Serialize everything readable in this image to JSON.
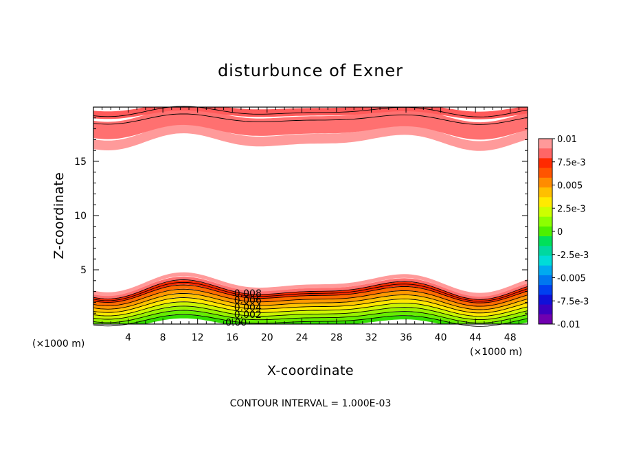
{
  "chart_data": {
    "type": "contour",
    "title": "disturbunce of Exner",
    "xlabel": "X-coordinate",
    "ylabel": "Z-coordinate",
    "x_unit": "(×1000 m)",
    "y_unit": "(×1000 m)",
    "xlim": [
      0,
      50
    ],
    "ylim": [
      0,
      20
    ],
    "x_ticks": [
      4,
      8,
      12,
      16,
      20,
      24,
      28,
      32,
      36,
      40,
      44,
      48
    ],
    "y_ticks": [
      5,
      10,
      15
    ],
    "x_tick_labels": [
      "4",
      "8",
      "12",
      "16",
      "20",
      "24",
      "28",
      "32",
      "36",
      "40",
      "44",
      "48"
    ],
    "y_tick_labels": [
      "5",
      "10",
      "15"
    ],
    "contour_levels": [
      -0.01,
      -0.0075,
      -0.005,
      -0.0025,
      0,
      0.0025,
      0.005,
      0.0075,
      0.01
    ],
    "colorbar_labels": [
      "0.01",
      "7.5e-3",
      "0.005",
      "2.5e-3",
      "0",
      "-2.5e-3",
      "-0.005",
      "-7.5e-3",
      "-0.01"
    ],
    "colorbar_colors": [
      "#ff9999",
      "#ff6666",
      "#ff2a00",
      "#ff5500",
      "#ff8c00",
      "#ffbf00",
      "#ffea00",
      "#ccff00",
      "#8cff00",
      "#4cf000",
      "#00e05a",
      "#00d8a0",
      "#00dcd8",
      "#00aaf0",
      "#0077f0",
      "#0040f0",
      "#1010d8",
      "#3c00c0",
      "#7000b0"
    ],
    "contour_line_labels": [
      "0.008",
      "0.006",
      "0.004",
      "0.002",
      "0.00"
    ],
    "note": "CONTOUR INTERVAL = 1.000E-03"
  }
}
